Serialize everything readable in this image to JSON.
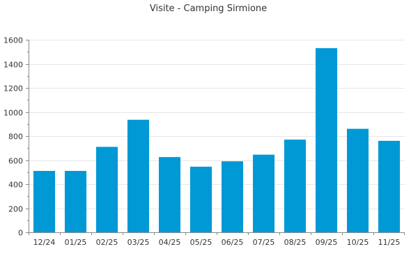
{
  "chart_data": {
    "type": "bar",
    "title": "Visite - Camping Sirmione",
    "xlabel": "",
    "ylabel": "",
    "categories": [
      "12/24",
      "01/25",
      "02/25",
      "03/25",
      "04/25",
      "05/25",
      "06/25",
      "07/25",
      "08/25",
      "09/25",
      "10/25",
      "11/25"
    ],
    "values": [
      510,
      510,
      710,
      935,
      625,
      545,
      590,
      645,
      770,
      1530,
      860,
      760
    ],
    "ylim": [
      0,
      1600
    ],
    "yticks": [
      0,
      200,
      400,
      600,
      800,
      1000,
      1200,
      1400,
      1600
    ],
    "grid": true,
    "legend": "none",
    "bar_color": "#0099d6"
  }
}
